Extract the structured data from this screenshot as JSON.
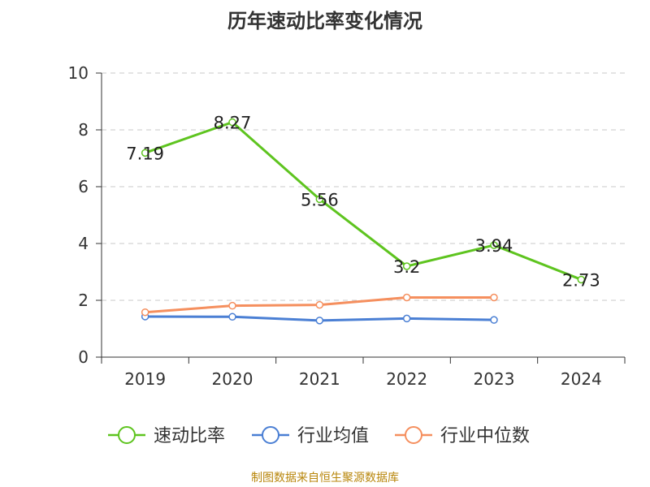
{
  "source": "制图数据来自恒生聚源数据库",
  "chart_data": {
    "type": "line",
    "title": "历年速动比率变化情况",
    "categories": [
      "2019",
      "2020",
      "2021",
      "2022",
      "2023",
      "2024"
    ],
    "ylim": [
      0,
      10
    ],
    "yticks": [
      0,
      2,
      4,
      6,
      8,
      10
    ],
    "grid": true,
    "legend_position": "bottom",
    "series": [
      {
        "name": "速动比率",
        "color": "#5ec41f",
        "values": [
          7.19,
          8.27,
          5.56,
          3.2,
          3.94,
          2.73
        ],
        "labels": [
          "7.19",
          "8.27",
          "5.56",
          "3.2",
          "3.94",
          "2.73"
        ]
      },
      {
        "name": "行业均值",
        "color": "#4a7fd4",
        "values": [
          1.43,
          1.42,
          1.29,
          1.36,
          1.31,
          null
        ]
      },
      {
        "name": "行业中位数",
        "color": "#f58f5e",
        "values": [
          1.58,
          1.81,
          1.84,
          2.1,
          2.1,
          null
        ]
      }
    ]
  }
}
